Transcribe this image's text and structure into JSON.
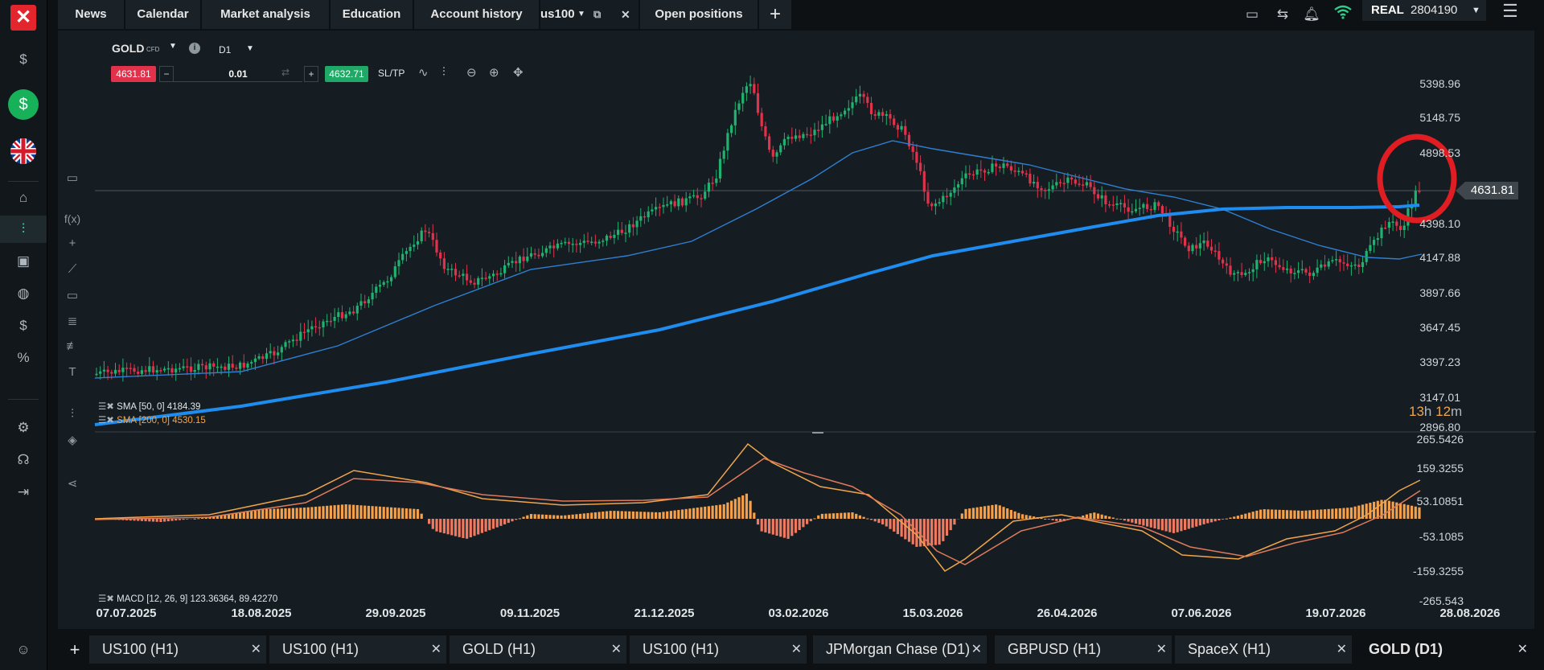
{
  "top_nav": {
    "tabs": [
      "News",
      "Calendar",
      "Market analysis",
      "Education",
      "Account history"
    ],
    "symbol_tab": "us100",
    "open_positions": "Open positions",
    "add": "+"
  },
  "account": {
    "type": "REAL",
    "number": "2804190"
  },
  "instrument": {
    "name": "GOLD",
    "kind": "CFD",
    "timeframe": "D1",
    "sell_price": "4631.81",
    "buy_price": "4632.71",
    "volume": "0.01",
    "sltp": "SL/TP",
    "minus": "−",
    "plus": "+"
  },
  "price_axis": [
    "5398.96",
    "5148.75",
    "4898.53",
    "4648.32",
    "4398.10",
    "4147.88",
    "3897.66",
    "3647.45",
    "3397.23",
    "3147.01",
    "2896.80"
  ],
  "current_price_label": "4631.81",
  "countdown": {
    "h": "13",
    "h_unit": "h",
    "m": "12",
    "m_unit": "m"
  },
  "indicators": {
    "sma50": "SMA [50, 0] 4184.39",
    "sma200": "SMA [200, 0] 4530.15",
    "macd": "MACD [12, 26, 9] 123.36364, 89.42270"
  },
  "macd_axis": [
    "265.5426",
    "159.3255",
    "53.10851",
    "-53.1085",
    "-159.3255",
    "-265.543"
  ],
  "dates": [
    "07.07.2025",
    "18.08.2025",
    "29.09.2025",
    "09.11.2025",
    "21.12.2025",
    "03.02.2026",
    "15.03.2026",
    "26.04.2026",
    "07.06.2026",
    "19.07.2026",
    "28.08.2026"
  ],
  "bottom_tabs": [
    {
      "label": "US100 (H1)"
    },
    {
      "label": "US100 (H1)"
    },
    {
      "label": "GOLD (H1)"
    },
    {
      "label": "US100 (H1)"
    },
    {
      "label": "JPMorgan Chase (D1)"
    },
    {
      "label": "GBPUSD (H1)"
    },
    {
      "label": "SpaceX (H1)"
    },
    {
      "label": "GOLD (D1)"
    }
  ],
  "colors": {
    "up": "#1fb36f",
    "down": "#e0334b",
    "sma50": "#2f7fd2",
    "sma200": "#1f8cf0",
    "macd_pos": "#f5a04a",
    "macd_neg": "#f07a60",
    "highlight": "#e01d23"
  }
}
